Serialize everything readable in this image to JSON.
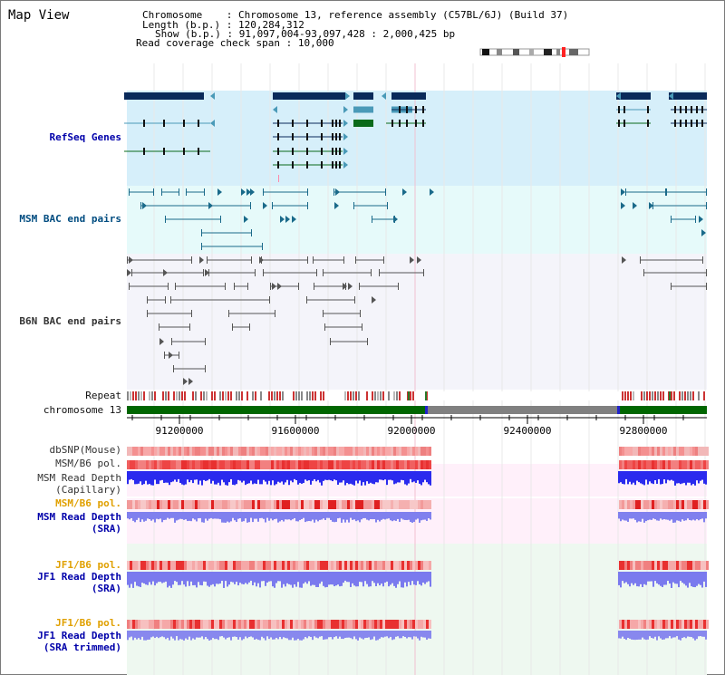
{
  "title": "Map View",
  "info": {
    "chromosome_label": "Chromosome",
    "chromosome_value": "Chromosome 13, reference assembly (C57BL/6J) (Build 37)",
    "length_label": "Length (b.p.)",
    "length_value": "120,284,312",
    "show_label": "Show (b.p.)",
    "show_value": "91,097,004-93,097,428 : 2,000,425 bp",
    "coverage_label": "Read coverage check span",
    "coverage_value": "10,000"
  },
  "tracks": {
    "refseq": "RefSeq Genes",
    "msm_bac": "MSM BAC end pairs",
    "b6n_bac": "B6N BAC end pairs",
    "repeat": "Repeat",
    "chromosome": "chromosome 13",
    "dbsnp": "dbSNP(Mouse)",
    "msm_b6_pol_1": "MSM/B6 pol.",
    "msm_read_depth_cap_1": "MSM Read Depth",
    "msm_read_depth_cap_2": "(Capillary)",
    "msm_b6_pol_2": "MSM/B6 pol.",
    "msm_read_depth_sra_1": "MSM Read Depth",
    "msm_read_depth_sra_2": "(SRA)",
    "jf1_b6_pol_1": "JF1/B6 pol.",
    "jf1_read_depth_1": "JF1 Read Depth",
    "jf1_read_depth_2": "(SRA)",
    "jf1_b6_pol_2": "JF1/B6 pol.",
    "jf1_read_depth_trim_1": "JF1 Read Depth",
    "jf1_read_depth_trim_2": "(SRA trimmed)"
  },
  "axis_ticks": [
    "91200000",
    "91600000",
    "92000000",
    "92400000",
    "92800000"
  ],
  "colors": {
    "refseq_bg": "#d6effa",
    "msm_bg": "#e6fafa",
    "b6n_bg": "#f4f4fa",
    "gene_dark": "#0a2a5a",
    "gene_teal": "#4a9ab8",
    "gene_green": "#0a6a1a",
    "chromosome_green": "#006600",
    "chromosome_gray": "#808080",
    "repeat_red": "#cc3333",
    "snp_pink": "#f08080",
    "depth_blue": "#2222ee",
    "depth_light_blue": "#7777ee",
    "label_orange": "#e0a000"
  }
}
